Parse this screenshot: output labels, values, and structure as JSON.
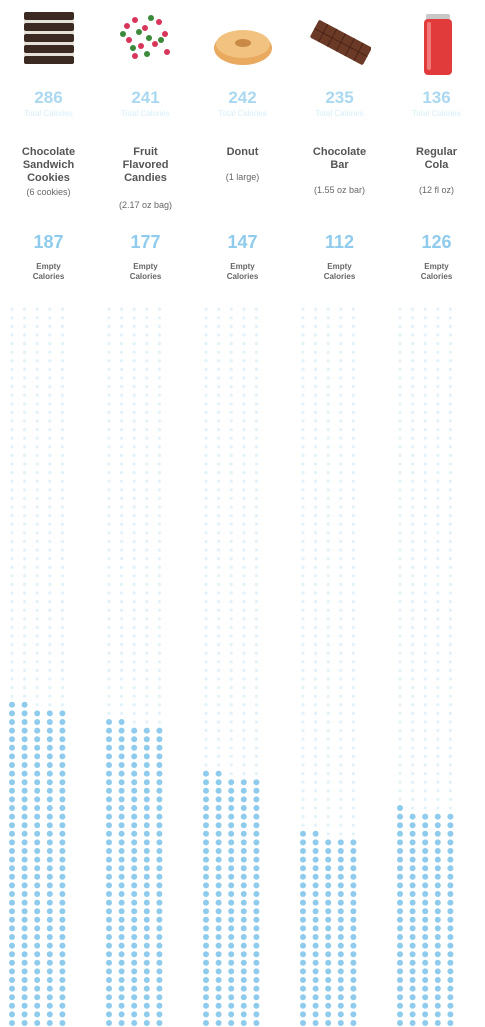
{
  "chart_data": {
    "type": "unit-dot-column",
    "title": "",
    "colors": {
      "empty_dot": "#8fcbec",
      "grid_dot": "#e3f1f9",
      "total": "#a9d8f0",
      "text": "#555555"
    },
    "items": [
      {
        "icon": "chocolate-sandwich-cookies-icon",
        "total_calories": 286,
        "total_unit": "Total Calories",
        "name": [
          "Chocolate",
          "Sandwich",
          "Cookies"
        ],
        "serving": "(6 cookies)",
        "empty_calories": 187,
        "empty_label": [
          "Empty",
          "Calories"
        ]
      },
      {
        "icon": "fruit-flavored-candies-icon",
        "total_calories": 241,
        "total_unit": "Total Calories",
        "name": [
          "Fruit",
          "Flavored",
          "Candies"
        ],
        "serving": "(2.17 oz bag)",
        "empty_calories": 177,
        "empty_label": [
          "Empty",
          "Calories"
        ]
      },
      {
        "icon": "donut-icon",
        "total_calories": 242,
        "total_unit": "Total Calories",
        "name": [
          "Donut"
        ],
        "serving": "(1 large)",
        "empty_calories": 147,
        "empty_label": [
          "Empty",
          "Calories"
        ]
      },
      {
        "icon": "chocolate-bar-icon",
        "total_calories": 235,
        "total_unit": "Total Calories",
        "name": [
          "Chocolate",
          "Bar"
        ],
        "serving": "(1.55 oz bar)",
        "empty_calories": 112,
        "empty_label": [
          "Empty",
          "Calories"
        ]
      },
      {
        "icon": "regular-cola-icon",
        "total_calories": 136,
        "total_unit": "Total Calories",
        "name": [
          "Regular",
          "Cola"
        ],
        "serving": "(12 fl oz)",
        "empty_calories": 126,
        "empty_label": [
          "Empty",
          "Calories"
        ]
      }
    ]
  }
}
